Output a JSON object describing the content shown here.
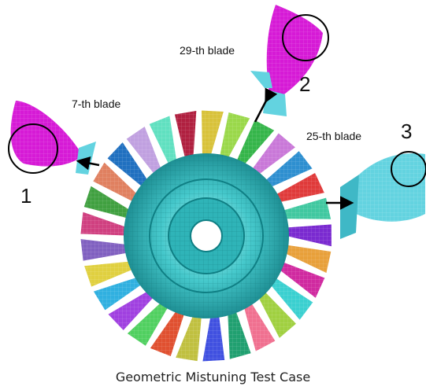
{
  "labels": {
    "blade_7": "7-th blade",
    "blade_29": "29-th blade",
    "blade_25": "25-th blade",
    "num_1": "1",
    "num_2": "2",
    "num_3": "3"
  },
  "caption": "Geometric Mistuning Test Case",
  "colors": {
    "hub": "#3fc4c6",
    "hub_dark": "#1f8e92",
    "blade_magenta": "#d61ad6",
    "blade_cyan": "#63d3e0",
    "circle": "#000000",
    "arrow": "#000000",
    "blade_palette": [
      "#d8c23a",
      "#9ad84a",
      "#35b54a",
      "#c978d8",
      "#2e8fd0",
      "#e03a3a",
      "#40c8a0",
      "#7a2ad0",
      "#e8a03a",
      "#d02aa0",
      "#3ad0d0",
      "#a0d040",
      "#f07090",
      "#20a070",
      "#4050e0",
      "#c0c040",
      "#e05030",
      "#50d060",
      "#a040e0",
      "#30b0e0",
      "#e0d040",
      "#8060c0",
      "#d04080",
      "#40a040",
      "#e08060",
      "#2070c0",
      "#c0a0e0",
      "#60e0c0",
      "#b02040"
    ]
  }
}
